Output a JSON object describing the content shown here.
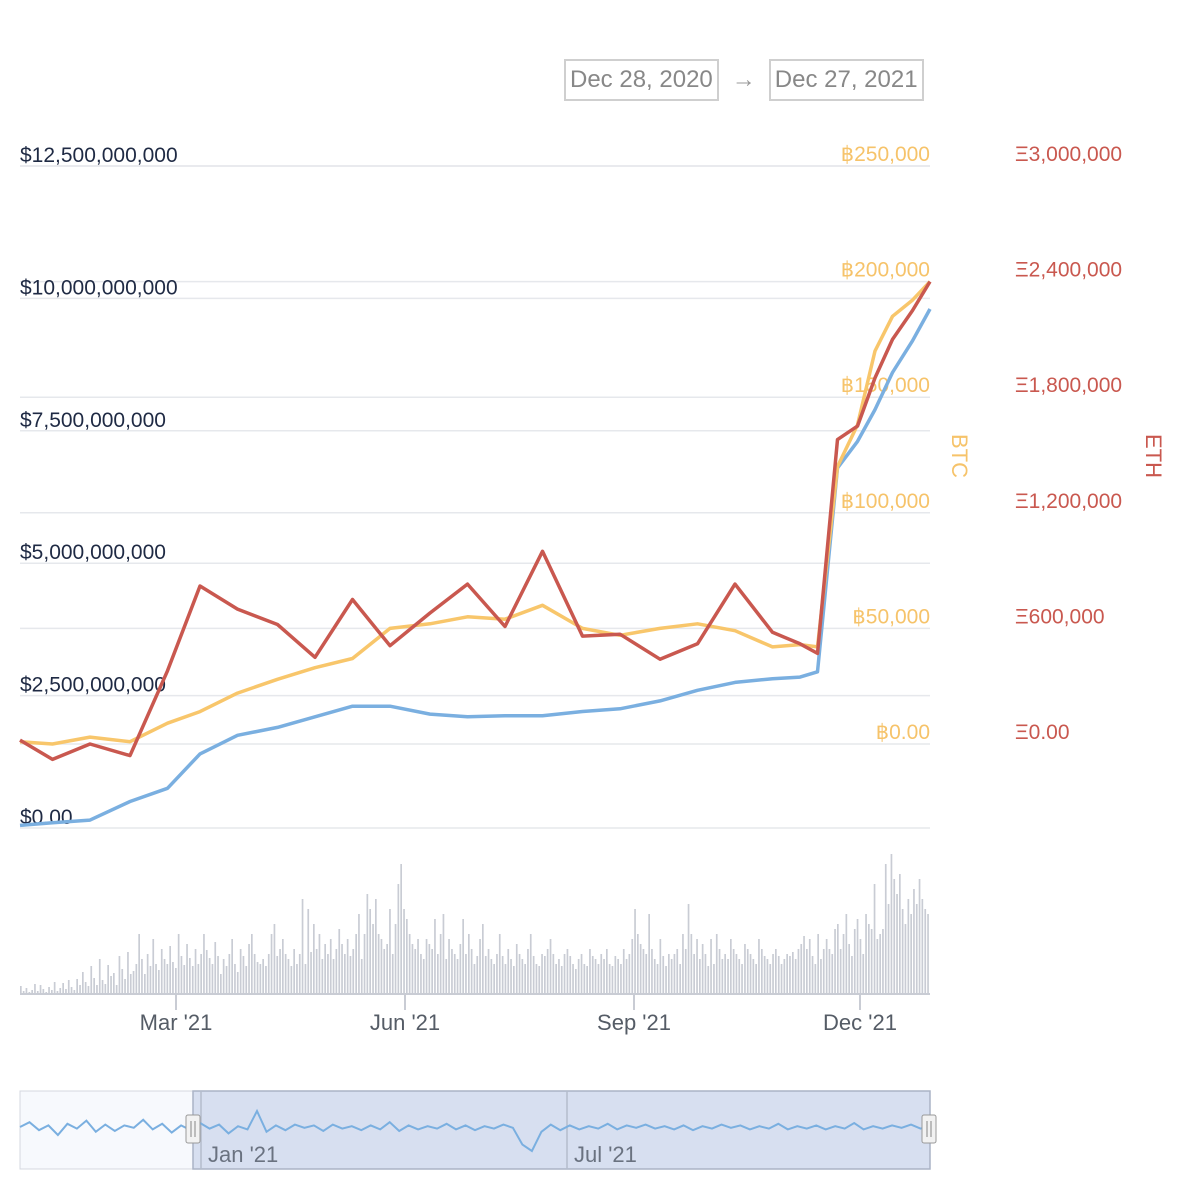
{
  "date_range": {
    "from": "Dec 28, 2020",
    "arrow": "→",
    "to": "Dec 27, 2021"
  },
  "colors": {
    "usd": "#7aafe0",
    "btc": "#f8c66b",
    "eth": "#c9584f",
    "volume": "#c9ccd4",
    "nav_fill": "#d7dff0"
  },
  "chart_data": {
    "type": "line",
    "x_start": "2020-12-28",
    "x_end": "2021-12-27",
    "axes": {
      "usd": {
        "ticks": [
          "$0.00",
          "$2,500,000,000",
          "$5,000,000,000",
          "$7,500,000,000",
          "$10,000,000,000",
          "$12,500,000,000"
        ],
        "range": [
          0,
          12500000000
        ]
      },
      "btc": {
        "title": "BTC",
        "ticks": [
          "฿0.00",
          "฿50,000",
          "฿100,000",
          "฿150,000",
          "฿200,000",
          "฿250,000"
        ],
        "range": [
          0,
          250000
        ]
      },
      "eth": {
        "title": "ETH",
        "ticks": [
          "Ξ0.00",
          "Ξ600,000",
          "Ξ1,200,000",
          "Ξ1,800,000",
          "Ξ2,400,000",
          "Ξ3,000,000"
        ],
        "range": [
          0,
          3000000
        ]
      }
    },
    "x_ticks": [
      "Mar '21",
      "Jun '21",
      "Sep '21",
      "Dec '21"
    ],
    "series": [
      {
        "axis": "usd",
        "x": [
          "2020-12-28",
          "2021-01-10",
          "2021-01-25",
          "2021-02-10",
          "2021-02-25",
          "2021-03-10",
          "2021-03-25",
          "2021-04-10",
          "2021-04-25",
          "2021-05-10",
          "2021-05-25",
          "2021-06-10",
          "2021-06-25",
          "2021-07-10",
          "2021-07-25",
          "2021-08-10",
          "2021-08-25",
          "2021-09-10",
          "2021-09-25",
          "2021-10-10",
          "2021-10-25",
          "2021-11-05",
          "2021-11-12",
          "2021-11-20",
          "2021-11-28",
          "2021-12-05",
          "2021-12-12",
          "2021-12-20",
          "2021-12-27"
        ],
        "values": [
          50000000.0,
          100000000.0,
          150000000.0,
          500000000.0,
          750000000.0,
          1400000000.0,
          1750000000.0,
          1900000000.0,
          2100000000.0,
          2300000000.0,
          2300000000.0,
          2150000000.0,
          2100000000.0,
          2120000000.0,
          2120000000.0,
          2200000000.0,
          2250000000.0,
          2400000000.0,
          2600000000.0,
          2750000000.0,
          2820000000.0,
          2850000000.0,
          2950000000.0,
          6800000000.0,
          7300000000.0,
          7900000000.0,
          8600000000.0,
          9200000000.0,
          9800000000.0
        ]
      },
      {
        "axis": "btc",
        "x": [
          "2020-12-28",
          "2021-01-10",
          "2021-01-25",
          "2021-02-10",
          "2021-02-25",
          "2021-03-10",
          "2021-03-25",
          "2021-04-10",
          "2021-04-25",
          "2021-05-10",
          "2021-05-25",
          "2021-06-10",
          "2021-06-25",
          "2021-07-10",
          "2021-07-25",
          "2021-08-10",
          "2021-08-25",
          "2021-09-10",
          "2021-09-25",
          "2021-10-10",
          "2021-10-25",
          "2021-11-05",
          "2021-11-12",
          "2021-11-20",
          "2021-11-28",
          "2021-12-05",
          "2021-12-12",
          "2021-12-20",
          "2021-12-27"
        ],
        "values": [
          1000,
          0,
          3000,
          1000,
          9000,
          14000,
          22000,
          28000,
          33000,
          37000,
          50000,
          52000,
          55000,
          54000,
          60000,
          50000,
          47000,
          50000,
          52000,
          49000,
          42000,
          43000,
          42000,
          120000,
          138000,
          170000,
          185000,
          192000,
          200000
        ]
      },
      {
        "axis": "eth",
        "x": [
          "2020-12-28",
          "2021-01-10",
          "2021-01-25",
          "2021-02-10",
          "2021-02-25",
          "2021-03-10",
          "2021-03-25",
          "2021-04-10",
          "2021-04-25",
          "2021-05-10",
          "2021-05-25",
          "2021-06-10",
          "2021-06-25",
          "2021-07-10",
          "2021-07-25",
          "2021-08-10",
          "2021-08-25",
          "2021-09-10",
          "2021-09-25",
          "2021-10-10",
          "2021-10-25",
          "2021-11-05",
          "2021-11-12",
          "2021-11-20",
          "2021-11-28",
          "2021-12-05",
          "2021-12-12",
          "2021-12-20",
          "2021-12-27"
        ],
        "values": [
          20000,
          -80000,
          0,
          -60000,
          380000,
          820000,
          700000,
          620000,
          450000,
          750000,
          510000,
          680000,
          830000,
          610000,
          1000000,
          560000,
          570000,
          440000,
          520000,
          830000,
          580000,
          520000,
          470000,
          1580000,
          1650000,
          1900000,
          2100000,
          2250000,
          2400000
        ]
      }
    ],
    "volume": {
      "values": [
        8,
        3,
        6,
        2,
        4,
        10,
        3,
        9,
        5,
        2,
        7,
        4,
        12,
        3,
        6,
        11,
        5,
        14,
        7,
        4,
        15,
        9,
        22,
        12,
        8,
        28,
        16,
        9,
        35,
        14,
        10,
        29,
        18,
        21,
        9,
        38,
        25,
        15,
        42,
        20,
        23,
        30,
        60,
        35,
        20,
        40,
        28,
        55,
        30,
        24,
        45,
        35,
        30,
        48,
        32,
        26,
        60,
        38,
        29,
        50,
        36,
        28,
        45,
        30,
        40,
        60,
        44,
        36,
        30,
        52,
        38,
        20,
        35,
        28,
        40,
        55,
        30,
        22,
        45,
        38,
        28,
        50,
        60,
        40,
        32,
        30,
        35,
        28,
        40,
        60,
        70,
        38,
        45,
        55,
        40,
        35,
        28,
        45,
        30,
        40,
        95,
        30,
        85,
        42,
        70,
        45,
        60,
        35,
        50,
        40,
        55,
        35,
        45,
        65,
        50,
        40,
        55,
        38,
        45,
        60,
        80,
        35,
        60,
        100,
        85,
        70,
        95,
        60,
        55,
        45,
        50,
        85,
        40,
        70,
        110,
        130,
        85,
        75,
        60,
        50,
        45,
        55,
        40,
        35,
        55,
        50,
        45,
        75,
        40,
        60,
        80,
        35,
        55,
        45,
        40,
        35,
        50,
        75,
        40,
        60,
        45,
        30,
        38,
        55,
        70,
        38,
        45,
        35,
        30,
        40,
        60,
        38,
        30,
        45,
        35,
        28,
        50,
        40,
        35,
        30,
        45,
        60,
        38,
        30,
        28,
        40,
        38,
        45,
        55,
        40,
        30,
        35,
        28,
        40,
        45,
        38,
        30,
        25,
        35,
        40,
        30,
        28,
        45,
        38,
        35,
        30,
        40,
        35,
        45,
        30,
        28,
        38,
        35,
        30,
        45,
        35,
        40,
        55,
        85,
        60,
        50,
        45,
        40,
        80,
        45,
        35,
        30,
        55,
        38,
        28,
        40,
        35,
        40,
        45,
        30,
        60,
        45,
        90,
        60,
        40,
        55,
        35,
        50,
        40,
        28,
        55,
        30,
        60,
        45,
        35,
        40,
        35,
        55,
        45,
        40,
        35,
        30,
        50,
        45,
        40,
        35,
        30,
        55,
        45,
        38,
        35,
        30,
        40,
        45,
        38,
        30,
        35,
        40,
        38,
        42,
        35,
        45,
        50,
        58,
        45,
        55,
        38,
        30,
        60,
        35,
        45,
        55,
        45,
        40,
        65,
        70,
        45,
        60,
        80,
        50,
        38,
        65,
        75,
        55,
        40,
        80,
        70,
        65,
        110,
        55,
        60,
        65,
        130,
        90,
        140,
        115,
        100,
        120,
        85,
        70,
        95,
        80,
        105,
        90,
        115,
        95,
        85,
        80
      ]
    }
  },
  "navigator": {
    "labels": [
      "Jan '21",
      "Jul '21"
    ]
  }
}
